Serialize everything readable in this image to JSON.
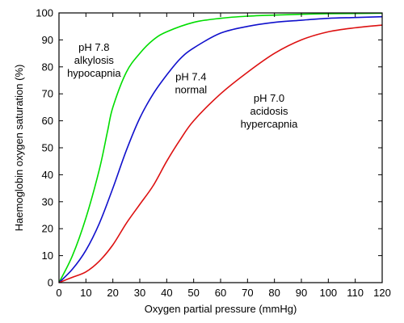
{
  "chart_data": {
    "type": "line",
    "xlabel": "Oxygen partial pressure (mmHg)",
    "ylabel": "Haemoglobin oxygen saturation (%)",
    "xlim": [
      0,
      120
    ],
    "ylim": [
      0,
      100
    ],
    "xticks": [
      0,
      10,
      20,
      30,
      40,
      50,
      60,
      70,
      80,
      90,
      100,
      110,
      120
    ],
    "yticks": [
      0,
      10,
      20,
      30,
      40,
      50,
      60,
      70,
      80,
      90,
      100
    ],
    "grid": false,
    "series": [
      {
        "name": "pH 7.8 alkylosis hypocapnia",
        "color": "#00dd00",
        "x": [
          0,
          5,
          10,
          15,
          18,
          20,
          25,
          30,
          35,
          40,
          50,
          60,
          70,
          80,
          90,
          100,
          110,
          120
        ],
        "y": [
          0,
          10,
          24,
          42,
          56,
          65,
          78,
          85,
          90,
          93,
          96.5,
          98,
          98.8,
          99.2,
          99.5,
          99.7,
          99.8,
          99.9
        ]
      },
      {
        "name": "pH 7.4 normal",
        "color": "#1010cc",
        "x": [
          0,
          5,
          10,
          15,
          20,
          25,
          30,
          35,
          40,
          45,
          50,
          60,
          70,
          80,
          90,
          100,
          110,
          120
        ],
        "y": [
          0,
          5,
          12,
          22,
          35,
          49,
          61,
          70,
          77,
          83,
          87,
          92.5,
          95,
          96.5,
          97.3,
          98,
          98.3,
          98.6
        ]
      },
      {
        "name": "pH 7.0 acidosis hypercapnia",
        "color": "#dd1111",
        "x": [
          0,
          5,
          10,
          15,
          20,
          25,
          30,
          35,
          40,
          45,
          50,
          60,
          70,
          80,
          90,
          100,
          110,
          120
        ],
        "y": [
          0,
          2,
          4,
          8,
          14,
          22,
          29,
          36,
          45,
          53,
          60,
          70,
          78,
          85,
          90,
          93,
          94.5,
          95.5
        ]
      }
    ],
    "annotations": [
      {
        "lines": [
          "pH 7.8",
          "alkylosis",
          "hypocapnia"
        ],
        "x": 13,
        "y": 86
      },
      {
        "lines": [
          "pH 7.4",
          "normal"
        ],
        "x": 49,
        "y": 75
      },
      {
        "lines": [
          "pH 7.0",
          "acidosis",
          "hypercapnia"
        ],
        "x": 78,
        "y": 67
      }
    ]
  }
}
